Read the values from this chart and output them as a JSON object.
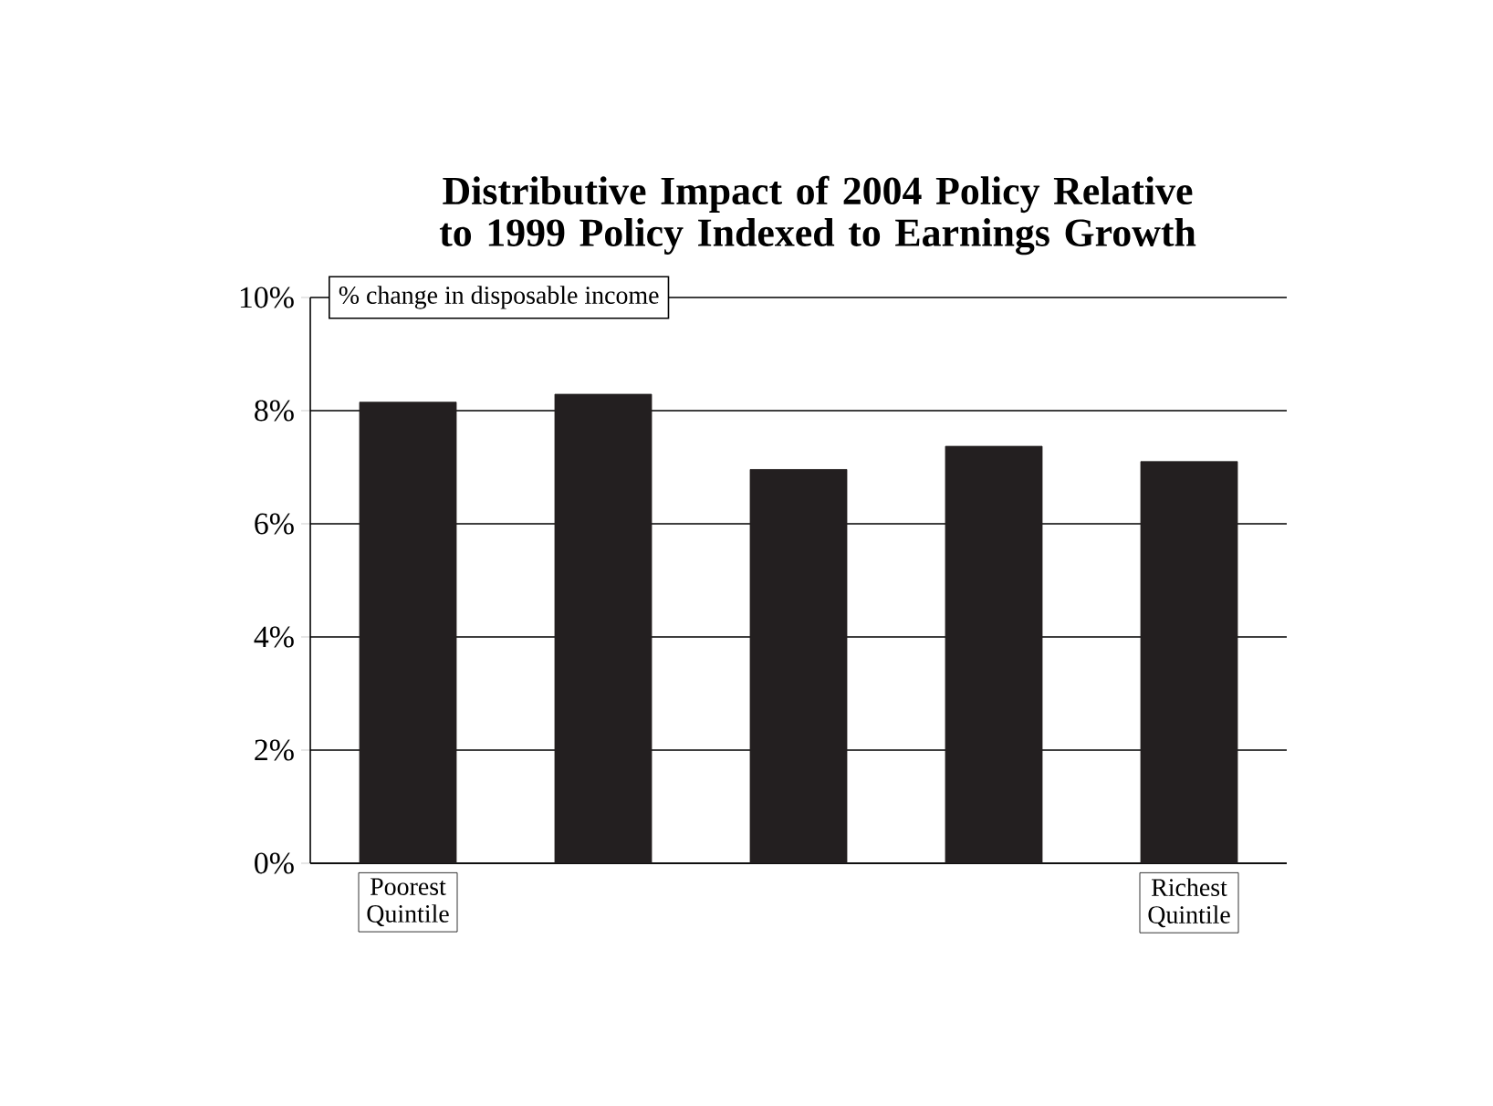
{
  "chart_data": {
    "type": "bar",
    "title": "Distributive Impact of 2004 Policy Relative to 1999 Policy Indexed to Earnings Growth",
    "ylabel": "% change in disposable income",
    "categories": [
      "Poorest Quintile",
      null,
      null,
      null,
      "Richest Quintile"
    ],
    "values": [
      8.15,
      8.29,
      6.96,
      7.37,
      7.1
    ],
    "color": "#231f20",
    "ylim": [
      0,
      10
    ],
    "yticks": [
      {
        "value": 0,
        "label": "0%"
      },
      {
        "value": 2,
        "label": "2%"
      },
      {
        "value": 4,
        "label": "4%"
      },
      {
        "value": 6,
        "label": "6%"
      },
      {
        "value": 8,
        "label": "8%"
      },
      {
        "value": 10,
        "label": "10%"
      }
    ],
    "grid": "y"
  }
}
